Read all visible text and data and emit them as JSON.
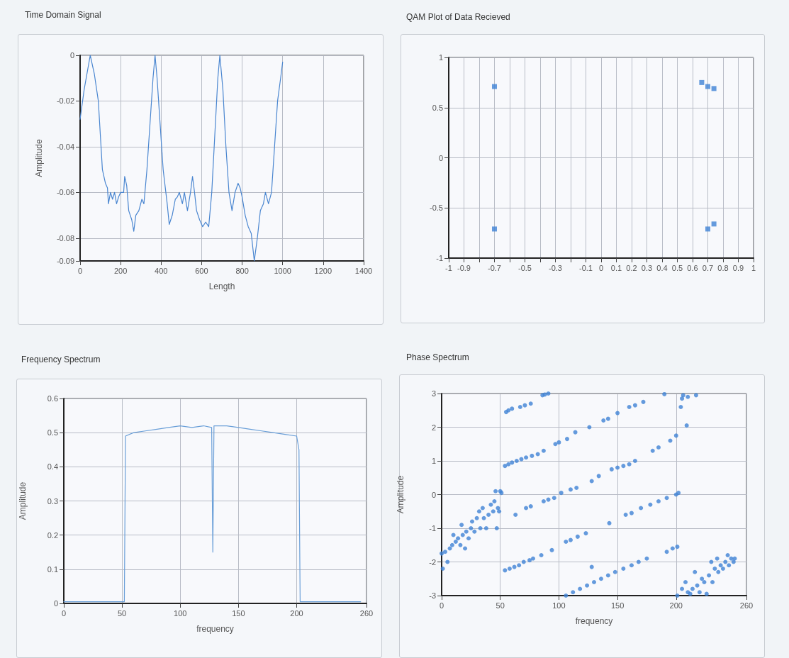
{
  "chart_data": [
    {
      "type": "line",
      "title": "Time Domain Signal",
      "xlabel": "Length",
      "ylabel": "Amplitude",
      "xlim": [
        0,
        1400
      ],
      "xticks": [
        0,
        200,
        400,
        600,
        800,
        1000,
        1200,
        1400
      ],
      "ylim": [
        -0.09,
        0
      ],
      "yticks": [
        -0.09,
        -0.08,
        -0.06,
        -0.04,
        -0.02,
        0
      ],
      "grid": true,
      "marker": "none",
      "line_style": "solid",
      "series": [
        {
          "color": "#4a86d0",
          "x": [
            0,
            20,
            50,
            70,
            90,
            100,
            110,
            125,
            135,
            140,
            150,
            160,
            170,
            180,
            190,
            200,
            215,
            220,
            230,
            240,
            255,
            265,
            275,
            290,
            305,
            315,
            330,
            345,
            360,
            370,
            380,
            395,
            410,
            430,
            440,
            455,
            470,
            480,
            490,
            505,
            515,
            530,
            545,
            555,
            565,
            575,
            590,
            605,
            620,
            635,
            650,
            665,
            680,
            690,
            705,
            720,
            735,
            750,
            765,
            780,
            790,
            800,
            815,
            830,
            845,
            860,
            875,
            890,
            905,
            915,
            930,
            945,
            960,
            975,
            990,
            1000
          ],
          "values": [
            -0.028,
            -0.015,
            0,
            -0.008,
            -0.02,
            -0.035,
            -0.05,
            -0.056,
            -0.058,
            -0.065,
            -0.06,
            -0.063,
            -0.06,
            -0.065,
            -0.062,
            -0.06,
            -0.06,
            -0.053,
            -0.057,
            -0.068,
            -0.072,
            -0.077,
            -0.07,
            -0.068,
            -0.063,
            -0.065,
            -0.05,
            -0.03,
            -0.01,
            0,
            -0.01,
            -0.03,
            -0.05,
            -0.065,
            -0.074,
            -0.07,
            -0.063,
            -0.062,
            -0.06,
            -0.065,
            -0.06,
            -0.068,
            -0.06,
            -0.053,
            -0.06,
            -0.068,
            -0.072,
            -0.075,
            -0.073,
            -0.075,
            -0.06,
            -0.035,
            -0.01,
            0,
            -0.015,
            -0.04,
            -0.06,
            -0.068,
            -0.06,
            -0.056,
            -0.058,
            -0.062,
            -0.07,
            -0.075,
            -0.078,
            -0.09,
            -0.08,
            -0.068,
            -0.065,
            -0.06,
            -0.065,
            -0.06,
            -0.04,
            -0.02,
            -0.01,
            -0.003
          ]
        }
      ]
    },
    {
      "type": "scatter",
      "title": "QAM Plot of Data Recieved",
      "xlim": [
        -1,
        1
      ],
      "xticks": [
        -1,
        -0.9,
        {
          "value": -0.8,
          "label": null
        },
        -0.7,
        {
          "value": -0.6,
          "label": null
        },
        -0.5,
        {
          "value": -0.4,
          "label": null
        },
        -0.3,
        {
          "value": -0.2,
          "label": null
        },
        -0.1,
        0,
        0.1,
        0.2,
        0.3,
        0.4,
        0.5,
        0.6,
        0.7,
        0.8,
        0.9,
        1
      ],
      "ylim": [
        -1,
        1
      ],
      "yticks": [
        -1,
        -0.5,
        0,
        0.5,
        1
      ],
      "grid": true,
      "marker": "square",
      "series": [
        {
          "color": "#3f82d4",
          "x": [
            -0.7,
            -0.7,
            0.7,
            0.66,
            0.74,
            0.7,
            0.74
          ],
          "values": [
            0.71,
            -0.71,
            0.71,
            0.75,
            0.69,
            -0.71,
            -0.66
          ]
        }
      ]
    },
    {
      "type": "line",
      "title": "Frequency Spectrum",
      "xlabel": "frequency",
      "ylabel": "Amplitude",
      "xlim": [
        0,
        260
      ],
      "xticks": [
        0,
        50,
        100,
        150,
        200,
        260
      ],
      "ylim": [
        0,
        0.6
      ],
      "yticks": [
        0,
        0.1,
        0.2,
        0.3,
        0.4,
        0.5,
        0.6
      ],
      "grid": true,
      "marker": "none",
      "line_style": "solid",
      "series": [
        {
          "color": "#6a9fd8",
          "x": [
            0,
            52,
            53,
            60,
            70,
            80,
            90,
            100,
            110,
            120,
            127,
            128,
            129,
            140,
            150,
            160,
            170,
            180,
            190,
            200,
            202,
            203,
            255
          ],
          "values": [
            0.005,
            0.005,
            0.49,
            0.5,
            0.505,
            0.51,
            0.515,
            0.52,
            0.515,
            0.52,
            0.515,
            0.15,
            0.52,
            0.52,
            0.515,
            0.51,
            0.505,
            0.5,
            0.495,
            0.49,
            0.45,
            0.005,
            0.005
          ]
        }
      ]
    },
    {
      "type": "scatter",
      "title": "Phase Spectrum",
      "xlabel": "frequency",
      "ylabel": "Amplitude",
      "xlim": [
        0,
        260
      ],
      "xticks": [
        0,
        50,
        100,
        150,
        200,
        260
      ],
      "ylim": [
        -3,
        3
      ],
      "yticks": [
        -3,
        -2,
        -1,
        0,
        1,
        2,
        3
      ],
      "grid": true,
      "marker": "circle",
      "series": [
        {
          "color": "#3f82d4",
          "x": [
            0,
            1,
            3,
            5,
            7,
            9,
            10,
            12,
            14,
            16,
            17,
            18,
            20,
            21,
            23,
            25,
            26,
            28,
            30,
            32,
            33,
            35,
            36,
            38,
            40,
            42,
            44,
            45,
            46,
            47,
            48,
            49,
            50,
            51,
            55,
            57,
            60,
            67,
            71,
            76,
            86,
            88,
            91,
            54,
            57,
            60,
            64,
            68,
            72,
            77,
            82,
            87,
            97,
            100,
            107,
            114,
            126,
            138,
            142,
            150,
            160,
            165,
            172,
            190,
            63,
            72,
            76,
            87,
            91,
            96,
            102,
            110,
            115,
            128,
            134,
            145,
            150,
            155,
            160,
            165,
            180,
            185,
            195,
            200,
            209,
            54,
            58,
            62,
            66,
            70,
            75,
            78,
            85,
            94,
            106,
            110,
            116,
            123,
            143,
            157,
            162,
            170,
            178,
            185,
            192,
            200,
            202,
            106,
            112,
            118,
            124,
            128,
            130,
            136,
            142,
            148,
            155,
            162,
            168,
            175,
            192,
            197,
            201,
            204,
            205,
            206,
            210,
            217,
            201,
            205,
            208,
            210,
            212,
            214,
            216,
            218,
            220,
            222,
            224,
            226,
            228,
            230,
            231,
            233,
            235,
            236,
            238,
            240,
            242,
            244,
            245,
            247,
            249,
            250
          ],
          "values": [
            -1.75,
            -2.2,
            -1.7,
            -2.0,
            -1.6,
            -1.5,
            -1.2,
            -1.4,
            -1.3,
            -1.5,
            -0.9,
            -1.2,
            -1.6,
            -1.1,
            -1.3,
            -1.0,
            -0.8,
            -1.1,
            -0.7,
            -0.5,
            -1.0,
            -0.4,
            -0.7,
            -1.0,
            -0.6,
            -0.3,
            -0.5,
            -0.2,
            0.1,
            -1.0,
            -0.4,
            -0.5,
            0.1,
            0.05,
            2.45,
            2.5,
            2.55,
            2.6,
            2.65,
            2.7,
            2.95,
            2.97,
            3.0,
            0.85,
            0.9,
            0.95,
            1.0,
            1.05,
            1.1,
            1.15,
            1.2,
            1.3,
            1.5,
            1.55,
            1.65,
            1.85,
            2.0,
            2.2,
            2.25,
            2.42,
            2.6,
            2.65,
            2.75,
            2.98,
            -0.6,
            -0.4,
            -0.35,
            -0.2,
            -0.15,
            -0.1,
            0.05,
            0.15,
            0.2,
            0.4,
            0.55,
            0.75,
            0.8,
            0.85,
            0.9,
            1.0,
            1.3,
            1.4,
            1.6,
            1.75,
            2.05,
            -2.25,
            -2.2,
            -2.15,
            -2.1,
            -2.0,
            -1.95,
            -1.9,
            -1.8,
            -1.65,
            -1.4,
            -1.35,
            -1.25,
            -1.15,
            -0.85,
            -0.6,
            -0.55,
            -0.4,
            -0.3,
            -0.2,
            -0.1,
            0.0,
            0.05,
            -3.0,
            -2.9,
            -2.8,
            -2.7,
            -2.15,
            -2.6,
            -2.5,
            -2.4,
            -2.3,
            -2.2,
            -2.1,
            -2.0,
            -1.9,
            -1.7,
            -1.6,
            -1.55,
            2.6,
            2.85,
            2.95,
            2.9,
            2.95,
            -3.0,
            -2.8,
            -2.6,
            -2.9,
            -2.95,
            -2.8,
            -2.3,
            -2.7,
            -2.9,
            -2.5,
            -2.6,
            -2.95,
            -2.4,
            -2.0,
            -2.6,
            -2.2,
            -1.9,
            -2.3,
            -2.1,
            -2.2,
            -2.0,
            -1.8,
            -2.1,
            -1.9,
            -2.0,
            -1.9
          ]
        }
      ]
    }
  ]
}
